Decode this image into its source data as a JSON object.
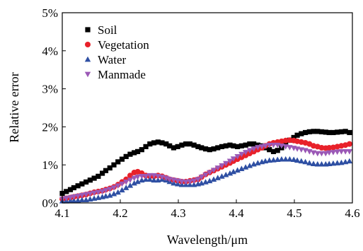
{
  "chart_data": {
    "type": "scatter",
    "xlabel": "Wavelength/μm",
    "ylabel": "Relative error",
    "xlim": [
      4.1,
      4.6
    ],
    "ylim": [
      0,
      5
    ],
    "x_ticks": [
      "4.1",
      "4.2",
      "4.3",
      "4.4",
      "4.5",
      "4.6"
    ],
    "y_ticks": [
      "0%",
      "1%",
      "2%",
      "3%",
      "4%",
      "5%"
    ],
    "grid": false,
    "legend_position": "top-left",
    "series": [
      {
        "name": "Soil",
        "marker": "square",
        "color": "#000000",
        "x": [
          4.1,
          4.107,
          4.114,
          4.12,
          4.127,
          4.134,
          4.141,
          4.148,
          4.155,
          4.162,
          4.169,
          4.175,
          4.182,
          4.189,
          4.196,
          4.203,
          4.21,
          4.217,
          4.224,
          4.23,
          4.237,
          4.244,
          4.251,
          4.258,
          4.265,
          4.272,
          4.279,
          4.285,
          4.292,
          4.299,
          4.306,
          4.313,
          4.32,
          4.327,
          4.334,
          4.34,
          4.347,
          4.354,
          4.361,
          4.368,
          4.375,
          4.382,
          4.389,
          4.395,
          4.402,
          4.409,
          4.416,
          4.423,
          4.43,
          4.437,
          4.444,
          4.45,
          4.457,
          4.464,
          4.471,
          4.478,
          4.485,
          4.492,
          4.499,
          4.505,
          4.512,
          4.519,
          4.526,
          4.533,
          4.54,
          4.547,
          4.554,
          4.56,
          4.567,
          4.574,
          4.581,
          4.588,
          4.595
        ],
        "y": [
          0.25,
          0.3,
          0.35,
          0.4,
          0.45,
          0.5,
          0.55,
          0.6,
          0.65,
          0.7,
          0.78,
          0.85,
          0.92,
          1.0,
          1.08,
          1.15,
          1.22,
          1.28,
          1.32,
          1.35,
          1.4,
          1.48,
          1.55,
          1.58,
          1.6,
          1.58,
          1.55,
          1.5,
          1.45,
          1.48,
          1.52,
          1.55,
          1.55,
          1.52,
          1.48,
          1.45,
          1.42,
          1.4,
          1.42,
          1.45,
          1.48,
          1.5,
          1.52,
          1.5,
          1.48,
          1.5,
          1.52,
          1.55,
          1.55,
          1.52,
          1.5,
          1.45,
          1.4,
          1.35,
          1.38,
          1.45,
          1.55,
          1.65,
          1.72,
          1.78,
          1.82,
          1.85,
          1.87,
          1.88,
          1.88,
          1.87,
          1.86,
          1.85,
          1.85,
          1.86,
          1.87,
          1.88,
          1.85
        ]
      },
      {
        "name": "Vegetation",
        "marker": "circle",
        "color": "#e8212a",
        "x": [
          4.1,
          4.107,
          4.114,
          4.12,
          4.127,
          4.134,
          4.141,
          4.148,
          4.155,
          4.162,
          4.169,
          4.175,
          4.182,
          4.189,
          4.196,
          4.203,
          4.21,
          4.217,
          4.224,
          4.23,
          4.237,
          4.244,
          4.251,
          4.258,
          4.265,
          4.272,
          4.279,
          4.285,
          4.292,
          4.299,
          4.306,
          4.313,
          4.32,
          4.327,
          4.334,
          4.34,
          4.347,
          4.354,
          4.361,
          4.368,
          4.375,
          4.382,
          4.389,
          4.395,
          4.402,
          4.409,
          4.416,
          4.423,
          4.43,
          4.437,
          4.444,
          4.45,
          4.457,
          4.464,
          4.471,
          4.478,
          4.485,
          4.492,
          4.499,
          4.505,
          4.512,
          4.519,
          4.526,
          4.533,
          4.54,
          4.547,
          4.554,
          4.56,
          4.567,
          4.574,
          4.581,
          4.588,
          4.595
        ],
        "y": [
          0.1,
          0.12,
          0.14,
          0.16,
          0.18,
          0.2,
          0.22,
          0.25,
          0.28,
          0.3,
          0.32,
          0.35,
          0.38,
          0.42,
          0.48,
          0.55,
          0.62,
          0.72,
          0.8,
          0.82,
          0.78,
          0.72,
          0.7,
          0.7,
          0.72,
          0.7,
          0.66,
          0.62,
          0.6,
          0.58,
          0.56,
          0.56,
          0.58,
          0.6,
          0.62,
          0.68,
          0.75,
          0.8,
          0.85,
          0.9,
          0.95,
          1.0,
          1.05,
          1.1,
          1.15,
          1.2,
          1.25,
          1.3,
          1.35,
          1.4,
          1.45,
          1.5,
          1.55,
          1.58,
          1.6,
          1.62,
          1.64,
          1.65,
          1.64,
          1.62,
          1.6,
          1.58,
          1.55,
          1.5,
          1.48,
          1.45,
          1.44,
          1.45,
          1.46,
          1.48,
          1.5,
          1.52,
          1.55
        ]
      },
      {
        "name": "Water",
        "marker": "triangle-up",
        "color": "#2e4fa3",
        "x": [
          4.1,
          4.107,
          4.114,
          4.12,
          4.127,
          4.134,
          4.141,
          4.148,
          4.155,
          4.162,
          4.169,
          4.175,
          4.182,
          4.189,
          4.196,
          4.203,
          4.21,
          4.217,
          4.224,
          4.23,
          4.237,
          4.244,
          4.251,
          4.258,
          4.265,
          4.272,
          4.279,
          4.285,
          4.292,
          4.299,
          4.306,
          4.313,
          4.32,
          4.327,
          4.334,
          4.34,
          4.347,
          4.354,
          4.361,
          4.368,
          4.375,
          4.382,
          4.389,
          4.395,
          4.402,
          4.409,
          4.416,
          4.423,
          4.43,
          4.437,
          4.444,
          4.45,
          4.457,
          4.464,
          4.471,
          4.478,
          4.485,
          4.492,
          4.499,
          4.505,
          4.512,
          4.519,
          4.526,
          4.533,
          4.54,
          4.547,
          4.554,
          4.56,
          4.567,
          4.574,
          4.581,
          4.588,
          4.595
        ],
        "y": [
          0.05,
          0.05,
          0.06,
          0.06,
          0.07,
          0.08,
          0.08,
          0.1,
          0.12,
          0.14,
          0.16,
          0.18,
          0.2,
          0.24,
          0.28,
          0.34,
          0.4,
          0.46,
          0.52,
          0.56,
          0.6,
          0.62,
          0.62,
          0.6,
          0.6,
          0.62,
          0.6,
          0.56,
          0.52,
          0.5,
          0.48,
          0.48,
          0.48,
          0.48,
          0.5,
          0.52,
          0.55,
          0.58,
          0.62,
          0.66,
          0.7,
          0.74,
          0.78,
          0.82,
          0.86,
          0.9,
          0.94,
          0.98,
          1.02,
          1.05,
          1.08,
          1.1,
          1.12,
          1.13,
          1.14,
          1.15,
          1.15,
          1.15,
          1.14,
          1.12,
          1.1,
          1.08,
          1.05,
          1.03,
          1.02,
          1.02,
          1.02,
          1.03,
          1.04,
          1.05,
          1.06,
          1.08,
          1.1
        ]
      },
      {
        "name": "Manmade",
        "marker": "triangle-down",
        "color": "#9b59b6",
        "x": [
          4.1,
          4.107,
          4.114,
          4.12,
          4.127,
          4.134,
          4.141,
          4.148,
          4.155,
          4.162,
          4.169,
          4.175,
          4.182,
          4.189,
          4.196,
          4.203,
          4.21,
          4.217,
          4.224,
          4.23,
          4.237,
          4.244,
          4.251,
          4.258,
          4.265,
          4.272,
          4.279,
          4.285,
          4.292,
          4.299,
          4.306,
          4.313,
          4.32,
          4.327,
          4.334,
          4.34,
          4.347,
          4.354,
          4.361,
          4.368,
          4.375,
          4.382,
          4.389,
          4.395,
          4.402,
          4.409,
          4.416,
          4.423,
          4.43,
          4.437,
          4.444,
          4.45,
          4.457,
          4.464,
          4.471,
          4.478,
          4.485,
          4.492,
          4.499,
          4.505,
          4.512,
          4.519,
          4.526,
          4.533,
          4.54,
          4.547,
          4.554,
          4.56,
          4.567,
          4.574,
          4.581,
          4.588,
          4.595
        ],
        "y": [
          0.1,
          0.12,
          0.14,
          0.16,
          0.18,
          0.2,
          0.22,
          0.24,
          0.26,
          0.28,
          0.3,
          0.33,
          0.36,
          0.4,
          0.45,
          0.5,
          0.55,
          0.6,
          0.65,
          0.68,
          0.7,
          0.7,
          0.72,
          0.72,
          0.7,
          0.68,
          0.65,
          0.62,
          0.6,
          0.58,
          0.56,
          0.55,
          0.56,
          0.58,
          0.62,
          0.68,
          0.74,
          0.8,
          0.86,
          0.92,
          0.98,
          1.04,
          1.1,
          1.16,
          1.22,
          1.28,
          1.33,
          1.38,
          1.42,
          1.46,
          1.48,
          1.5,
          1.52,
          1.52,
          1.52,
          1.5,
          1.48,
          1.46,
          1.44,
          1.42,
          1.4,
          1.38,
          1.35,
          1.32,
          1.3,
          1.3,
          1.3,
          1.32,
          1.33,
          1.34,
          1.35,
          1.35,
          1.35
        ]
      }
    ]
  }
}
